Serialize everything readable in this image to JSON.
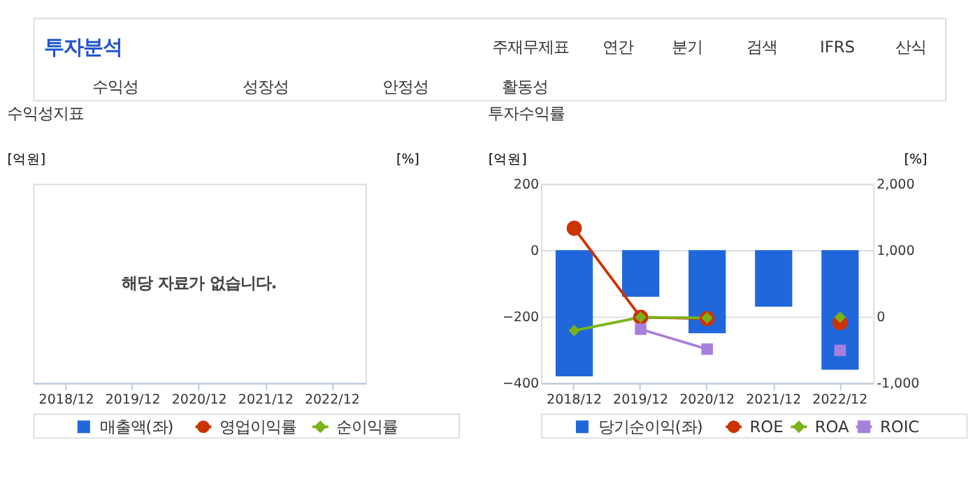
{
  "chart_data": [
    {
      "type": "other",
      "title": "투자분석",
      "annotations": [
        "주재무제표",
        "연간",
        "분기",
        "검색",
        "IFRS",
        "산식",
        "수익성",
        "성장성",
        "안정성",
        "활동성"
      ]
    },
    {
      "type": "other",
      "title": "수익성지표",
      "categories": [
        "2018/12",
        "2019/12",
        "2020/12",
        "2021/12",
        "2022/12"
      ],
      "ylabel": "[억원]",
      "y2label": "[%]",
      "legend": "bottom",
      "annotations": [
        "해당 자료가 없습니다."
      ],
      "series": [
        {
          "name": "매출액(좌)",
          "color": "#2067dc",
          "values": [
            null,
            null,
            null,
            null,
            null
          ]
        },
        {
          "name": "영업이익률",
          "color": "#cc3300",
          "type": "line",
          "axis": "y2",
          "marker": "circle",
          "values": [
            null,
            null,
            null,
            null,
            null
          ]
        },
        {
          "name": "순이익률",
          "color": "#7ab317",
          "type": "line",
          "axis": "y2",
          "marker": "diamond",
          "values": [
            null,
            null,
            null,
            null,
            null
          ]
        }
      ]
    },
    {
      "type": "bar",
      "title": "투자수익률",
      "categories": [
        "2018/12",
        "2019/12",
        "2020/12",
        "2021/12",
        "2022/12"
      ],
      "ylabel": "[억원]",
      "y2label": "[%]",
      "ylim": [
        -400,
        200
      ],
      "yticks": [
        -400,
        -200,
        0,
        200
      ],
      "y2lim": [
        -1000,
        2000
      ],
      "y2ticks": [
        {
          "value": -1000,
          "label": "-1,000"
        },
        0,
        {
          "value": 1000,
          "label": "1,000"
        },
        {
          "value": 2000,
          "label": "2,000"
        }
      ],
      "grid": "y",
      "legend": "bottom",
      "series": [
        {
          "name": "당기순이익(좌)",
          "color": "#2067dc",
          "values": [
            -380,
            -140,
            -250,
            -170,
            -360
          ]
        },
        {
          "name": "ROE",
          "color": "#cc3300",
          "type": "line",
          "axis": "y2",
          "marker": "circle",
          "values": [
            1330,
            -10,
            -30,
            null,
            -90
          ]
        },
        {
          "name": "ROA",
          "color": "#7ab317",
          "type": "line",
          "axis": "y2",
          "marker": "diamond",
          "values": [
            -210,
            -10,
            -20,
            null,
            -10
          ]
        },
        {
          "name": "ROIC",
          "color": "#a77fdd",
          "type": "line",
          "axis": "y2",
          "marker": "square",
          "values": [
            null,
            -190,
            -490,
            null,
            -510
          ]
        }
      ]
    }
  ]
}
